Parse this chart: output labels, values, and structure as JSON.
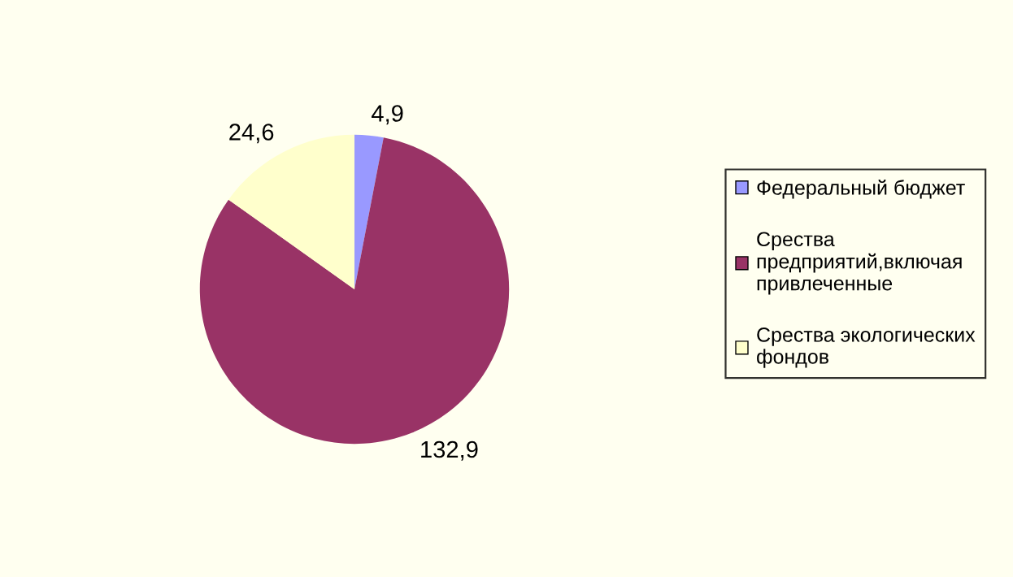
{
  "chart_data": {
    "type": "pie",
    "categories": [
      "Федеральный бюджет",
      "Срества\nпредприятий,включая\nпривлеченные",
      "Срества экологических\nфондов"
    ],
    "values": [
      4.9,
      132.9,
      24.6
    ],
    "value_labels": [
      "4,9",
      "132,9",
      "24,6"
    ],
    "colors": [
      "#9999ff",
      "#993366",
      "#ffffcc"
    ],
    "legend": "right"
  }
}
